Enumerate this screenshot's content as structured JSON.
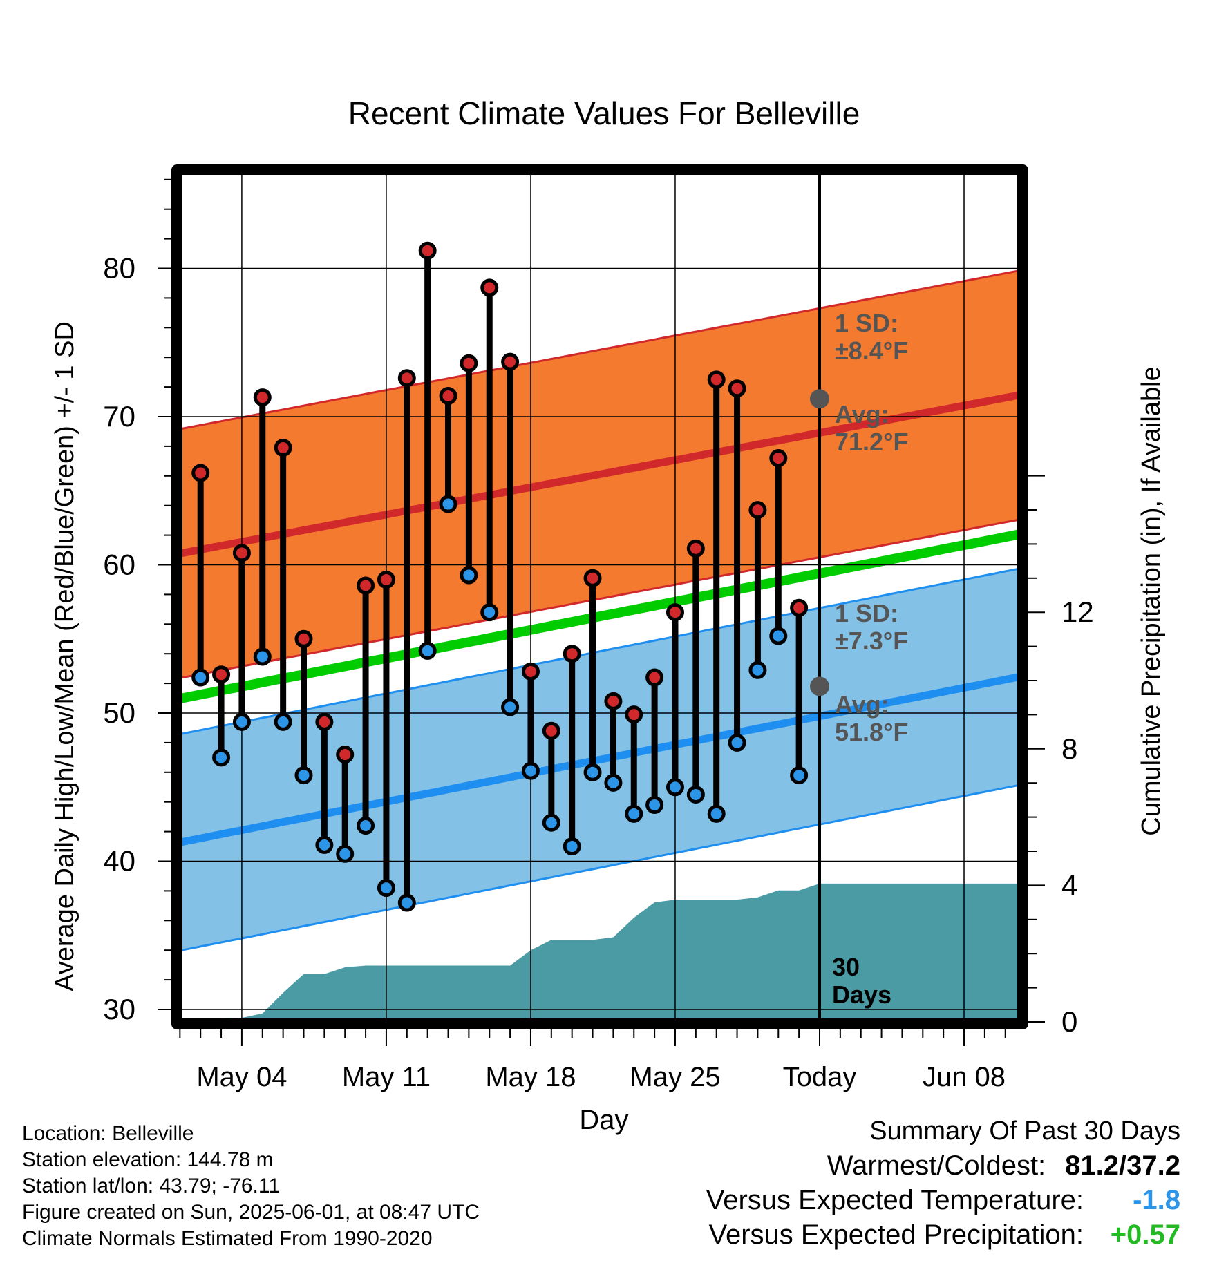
{
  "chart_data": {
    "type": "line",
    "title": "Recent Climate Values For Belleville",
    "xlabel": "Day",
    "ylabel": "Average Daily High/Low/Mean (Red/Blue/Green) +/- 1 SD",
    "y2label": "Cumulative Precipitation (in), If Available",
    "x_tick_labels": [
      "May 04",
      "May 11",
      "May 18",
      "May 25",
      "Today",
      "Jun 08"
    ],
    "ylim": [
      30,
      86
    ],
    "yticks": [
      30,
      40,
      50,
      60,
      70,
      80
    ],
    "y2lim": [
      0,
      16.3
    ],
    "y2ticks": [
      0,
      4,
      8,
      12
    ],
    "colors": {
      "high_band": "#f47a2f",
      "high_line": "#d0282b",
      "low_band": "#84c1e6",
      "low_line": "#1e8ff0",
      "mean_line": "#00cc00",
      "precip": "#4a9ba4",
      "high_marker": "#d0282b",
      "low_marker": "#2c95e8"
    },
    "normals": {
      "day_range": [
        -32,
        19
      ],
      "high_avg": [
        60.5,
        73.9
      ],
      "high_sd": 8.4,
      "low_avg": [
        41.0,
        55.0
      ],
      "low_sd": 7.3,
      "mean_avg": [
        50.7,
        64.6
      ]
    },
    "daily": {
      "day_offset": [
        -30,
        -29,
        -28,
        -27,
        -26,
        -25,
        -24,
        -23,
        -22,
        -21,
        -20,
        -19,
        -18,
        -17,
        -16,
        -15,
        -14,
        -13,
        -12,
        -11,
        -10,
        -9,
        -8,
        -7,
        -6,
        -5,
        -4,
        -3,
        -2,
        -1
      ],
      "high": [
        66.2,
        52.6,
        60.8,
        71.3,
        67.9,
        55.0,
        49.4,
        47.2,
        58.6,
        59.0,
        72.6,
        81.2,
        71.4,
        73.6,
        78.7,
        73.7,
        52.8,
        48.8,
        54.0,
        59.1,
        50.8,
        49.9,
        52.4,
        56.8,
        61.1,
        72.5,
        71.9,
        63.7,
        67.2,
        57.1
      ],
      "low": [
        52.4,
        47.0,
        49.4,
        53.8,
        49.4,
        45.8,
        41.1,
        40.5,
        42.4,
        38.2,
        37.2,
        54.2,
        64.1,
        59.3,
        56.8,
        50.4,
        46.1,
        42.6,
        41.0,
        46.0,
        45.3,
        43.2,
        43.8,
        45.0,
        44.5,
        43.2,
        48.0,
        52.9,
        55.2,
        45.8
      ]
    },
    "precip_cumulative": {
      "day_offset": [
        -31,
        -30,
        -29,
        -28,
        -27,
        -26,
        -25,
        -24,
        -23,
        -22,
        -21,
        -20,
        -19,
        -18,
        -17,
        -16,
        -15,
        -14,
        -13,
        -12,
        -11,
        -10,
        -9,
        -8,
        -7,
        -6,
        -5,
        -4,
        -3,
        -2,
        -1,
        0,
        19
      ],
      "inches": [
        0.0,
        0.0,
        0.1,
        0.12,
        0.25,
        0.85,
        1.4,
        1.4,
        1.6,
        1.65,
        1.65,
        1.65,
        1.65,
        1.65,
        1.65,
        1.65,
        1.65,
        2.1,
        2.4,
        2.4,
        2.4,
        2.48,
        3.05,
        3.5,
        3.58,
        3.58,
        3.58,
        3.58,
        3.65,
        3.85,
        3.85,
        4.05,
        4.05
      ]
    },
    "annotations": {
      "high_sd": "1 SD:",
      "high_sd_val": "±8.4°F",
      "high_avg": "Avg:",
      "high_avg_val": "71.2°F",
      "low_sd": "1 SD:",
      "low_sd_val": "±7.3°F",
      "low_avg": "Avg:",
      "low_avg_val": "51.8°F",
      "window": "30",
      "window2": "Days"
    },
    "today_high_avg": 71.2,
    "today_low_avg": 51.8
  },
  "info": {
    "location": "Location: Belleville",
    "elevation": "Station elevation: 144.78 m",
    "latlon": "Station lat/lon: 43.79; -76.11",
    "created": "Figure created on Sun, 2025-06-01, at 08:47 UTC",
    "normals": "Climate Normals Estimated From 1990-2020"
  },
  "summary": {
    "heading": "Summary Of Past 30 Days",
    "warm_label": "Warmest/Coldest:",
    "warm_value": "81.2/37.2",
    "temp_label": "Versus Expected Temperature:",
    "temp_value": "-1.8",
    "temp_color": "#2c95e8",
    "precip_label": "Versus Expected Precipitation:",
    "precip_value": "+0.57",
    "precip_color": "#22bb22"
  }
}
